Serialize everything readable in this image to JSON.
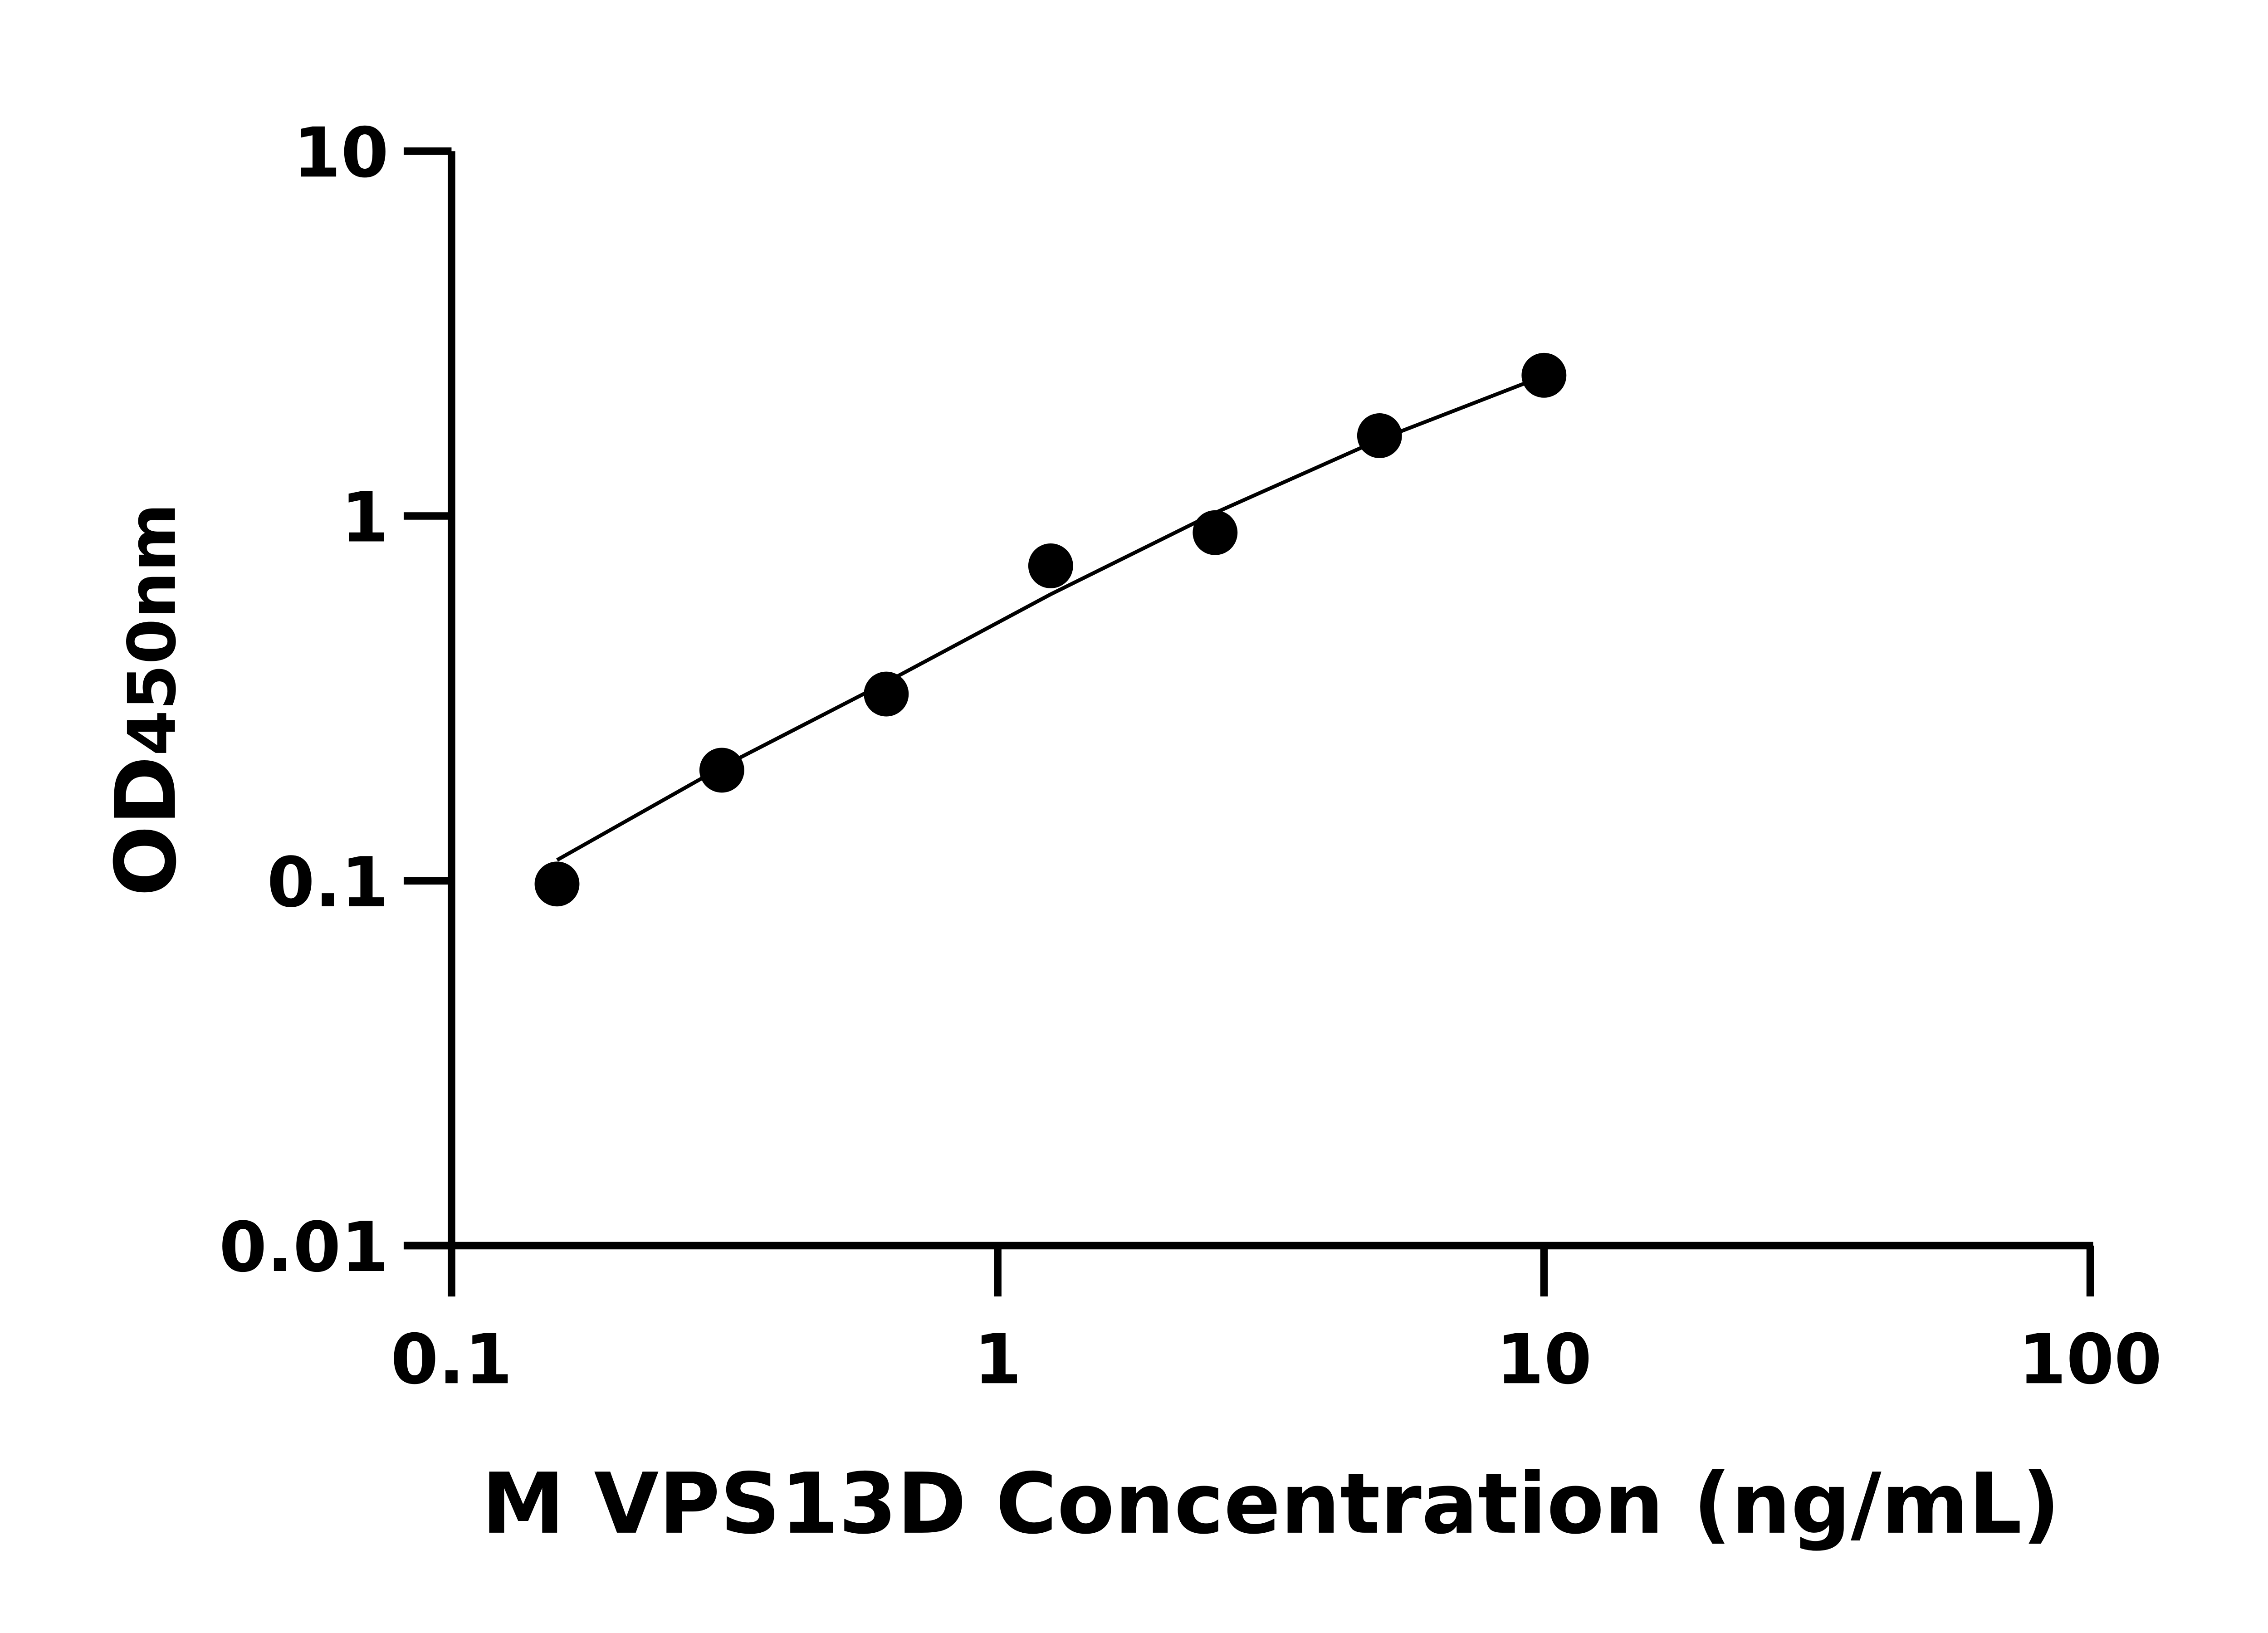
{
  "chart_data": {
    "type": "scatter",
    "title": "",
    "xlabel": "M VPS13D Concentration (ng/mL)",
    "ylabel_main": "OD",
    "ylabel_sub": "450nm",
    "x_scale": "log",
    "y_scale": "log",
    "xlim": [
      0.1,
      100
    ],
    "ylim": [
      0.01,
      10
    ],
    "x_ticks": [
      {
        "value": 0.1,
        "label": "0.1"
      },
      {
        "value": 1,
        "label": "1"
      },
      {
        "value": 10,
        "label": "10"
      },
      {
        "value": 100,
        "label": "100"
      }
    ],
    "y_ticks": [
      {
        "value": 0.01,
        "label": "0.01"
      },
      {
        "value": 0.1,
        "label": "0.1"
      },
      {
        "value": 1,
        "label": "1"
      },
      {
        "value": 10,
        "label": "10"
      }
    ],
    "grid": false,
    "legend": "none",
    "points": [
      {
        "x": 0.156,
        "y": 0.098
      },
      {
        "x": 0.3125,
        "y": 0.201
      },
      {
        "x": 0.625,
        "y": 0.325
      },
      {
        "x": 1.25,
        "y": 0.73
      },
      {
        "x": 2.5,
        "y": 0.9
      },
      {
        "x": 5,
        "y": 1.66
      },
      {
        "x": 10,
        "y": 2.43
      }
    ],
    "fit_curve": [
      {
        "x": 0.156,
        "y": 0.114
      },
      {
        "x": 0.3125,
        "y": 0.205
      },
      {
        "x": 0.625,
        "y": 0.35
      },
      {
        "x": 1.25,
        "y": 0.61
      },
      {
        "x": 2.5,
        "y": 1.02
      },
      {
        "x": 5,
        "y": 1.62
      },
      {
        "x": 10,
        "y": 2.42
      }
    ],
    "marker_color": "#000000",
    "line_color": "#000000"
  }
}
